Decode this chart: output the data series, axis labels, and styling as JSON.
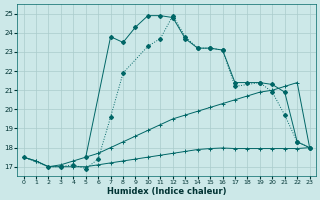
{
  "xlabel": "Humidex (Indice chaleur)",
  "bg_color": "#cce8e8",
  "grid_color": "#aacccc",
  "line_color": "#006666",
  "xlim": [
    -0.5,
    23.5
  ],
  "ylim": [
    16.5,
    25.5
  ],
  "yticks": [
    17,
    18,
    19,
    20,
    21,
    22,
    23,
    24,
    25
  ],
  "xticks": [
    0,
    1,
    2,
    3,
    4,
    5,
    6,
    7,
    8,
    9,
    10,
    11,
    12,
    13,
    14,
    15,
    16,
    17,
    18,
    19,
    20,
    21,
    22,
    23
  ],
  "line1_x": [
    0,
    1,
    2,
    3,
    4,
    5,
    6,
    7,
    8,
    9,
    10,
    11,
    12,
    13,
    14,
    15,
    16,
    17,
    18,
    19,
    20,
    21,
    22,
    23
  ],
  "line1_y": [
    17.5,
    17.3,
    17.0,
    17.1,
    17.3,
    17.5,
    17.7,
    18.0,
    18.3,
    18.6,
    18.9,
    19.2,
    19.5,
    19.7,
    19.9,
    20.1,
    20.3,
    20.5,
    20.7,
    20.9,
    21.0,
    21.2,
    21.4,
    18.0
  ],
  "line2_x": [
    0,
    1,
    2,
    3,
    4,
    5,
    6,
    7,
    8,
    9,
    10,
    11,
    12,
    13,
    14,
    15,
    16,
    17,
    18,
    19,
    20,
    21,
    22,
    23
  ],
  "line2_y": [
    17.5,
    17.3,
    17.0,
    17.0,
    17.0,
    17.0,
    17.1,
    17.2,
    17.3,
    17.4,
    17.5,
    17.6,
    17.7,
    17.8,
    17.9,
    17.95,
    17.98,
    17.95,
    17.95,
    17.95,
    17.95,
    17.95,
    17.95,
    18.0
  ],
  "line3_x": [
    0,
    2,
    3,
    4,
    5,
    6,
    7,
    8,
    10,
    11,
    12,
    13,
    14,
    15,
    16,
    17,
    19,
    20,
    21,
    22,
    23
  ],
  "line3_y": [
    17.5,
    17.0,
    17.0,
    17.1,
    16.9,
    17.4,
    19.6,
    21.9,
    23.3,
    23.7,
    24.9,
    23.8,
    23.2,
    23.2,
    23.1,
    21.2,
    21.4,
    20.9,
    19.7,
    18.3,
    18.0
  ],
  "line4_x": [
    5,
    7,
    8,
    9,
    10,
    11,
    12,
    13,
    14,
    15,
    16,
    17,
    18,
    19,
    20,
    21,
    22,
    23
  ],
  "line4_y": [
    17.5,
    23.8,
    23.5,
    24.3,
    24.9,
    24.9,
    24.8,
    23.7,
    23.2,
    23.2,
    23.1,
    21.4,
    21.4,
    21.4,
    21.3,
    20.9,
    18.3,
    18.0
  ]
}
